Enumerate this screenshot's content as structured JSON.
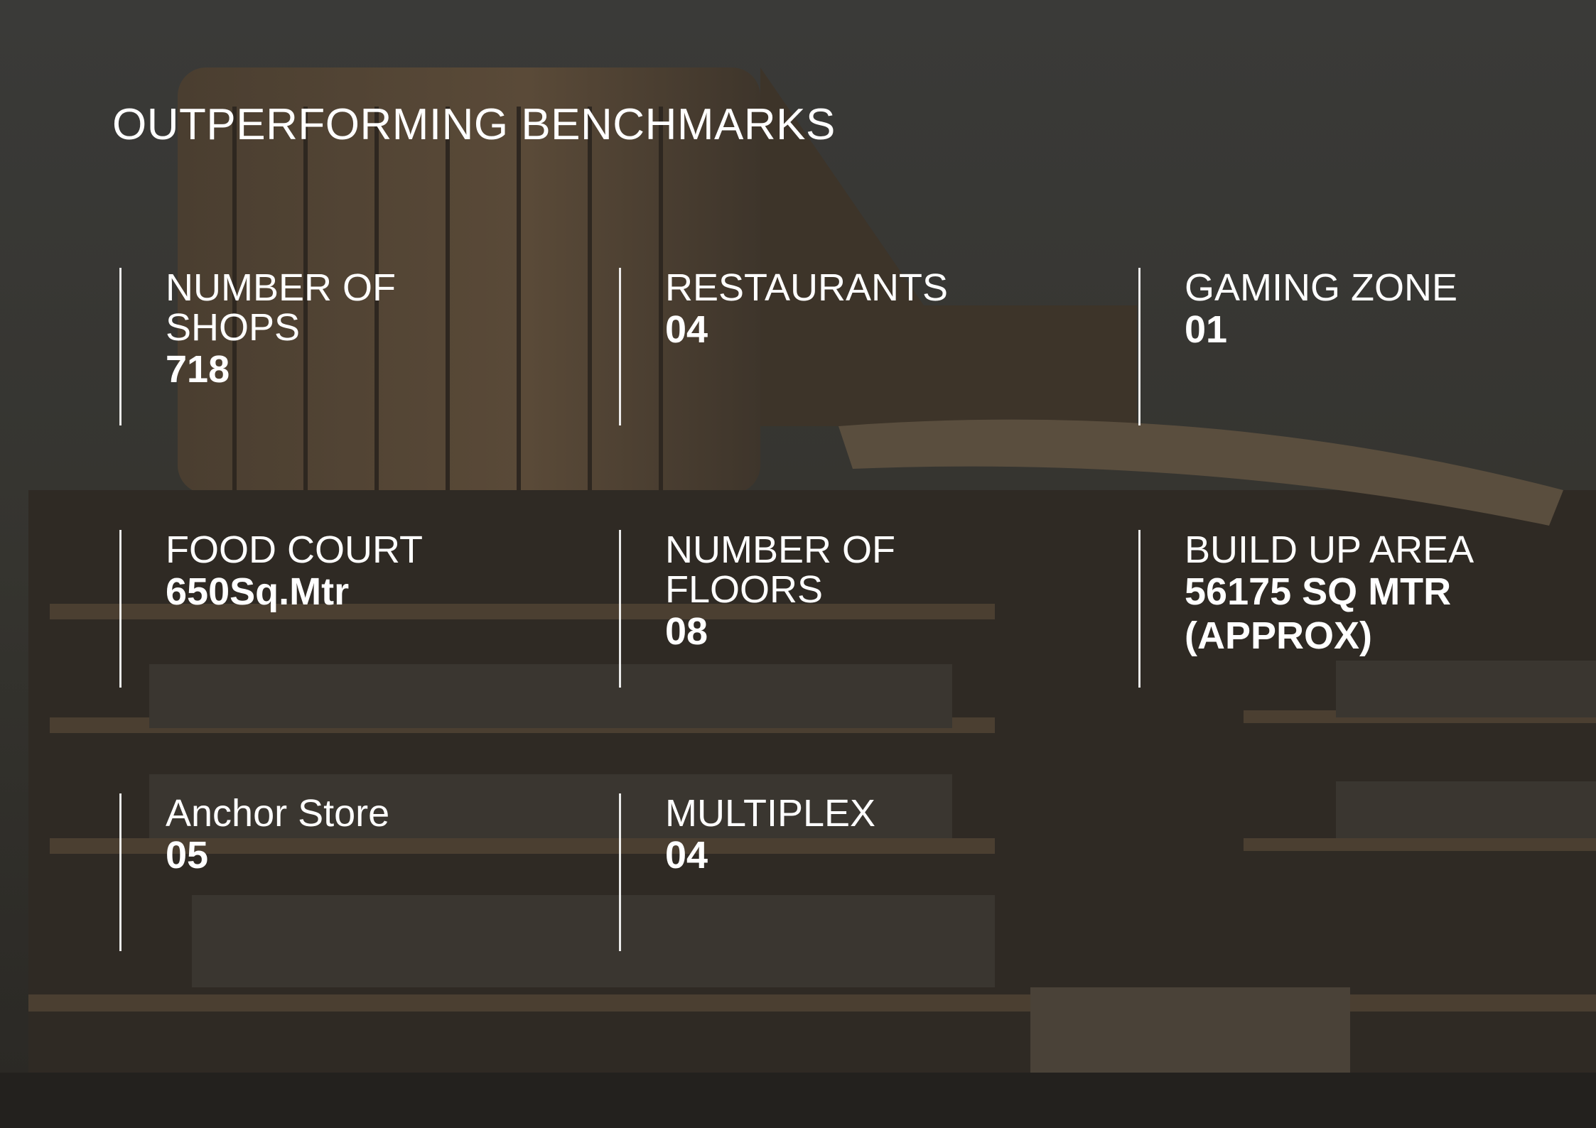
{
  "title": "OUTPERFORMING BENCHMARKS",
  "stats": [
    {
      "label": "NUMBER OF SHOPS",
      "value": "718"
    },
    {
      "label": "RESTAURANTS",
      "value": "04"
    },
    {
      "label": "GAMING ZONE",
      "value": "01"
    },
    {
      "label": "FOOD COURT",
      "value": "650Sq.Mtr"
    },
    {
      "label": "NUMBER OF FLOORS",
      "value": "08"
    },
    {
      "label": "BUILD UP AREA",
      "value": "56175 SQ MTR (APPROX)"
    },
    {
      "label": "Anchor Store",
      "value": "05"
    },
    {
      "label": "MULTIPLEX",
      "value": "04"
    }
  ]
}
